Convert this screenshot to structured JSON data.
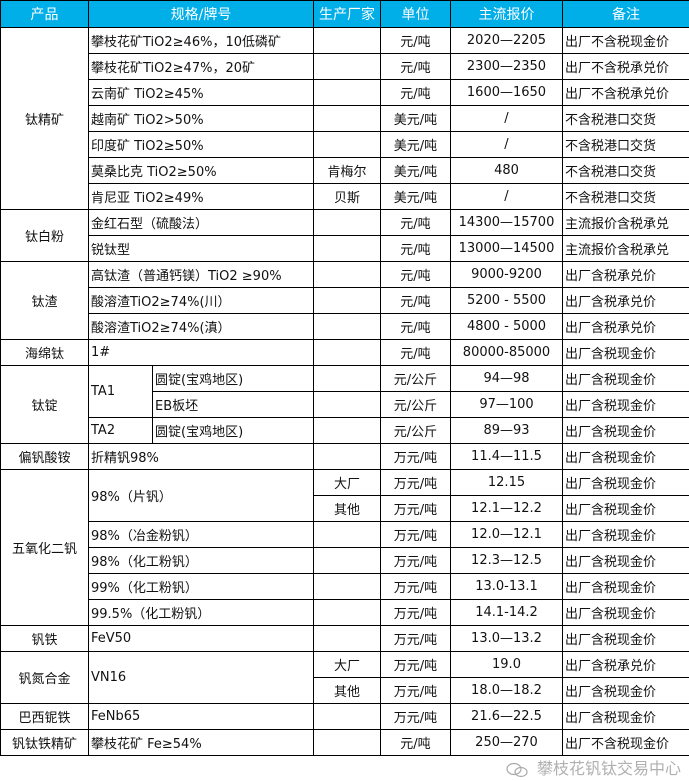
{
  "header": [
    "产品",
    "规格/牌号",
    "生产厂家",
    "单位",
    "主流报价",
    "备注"
  ],
  "colors": {
    "header_bg": "#00aee8",
    "header_text": "#ffffff",
    "border": "#000000"
  },
  "groups": [
    {
      "product": "钛精矿",
      "items": [
        {
          "spec": "攀枝花矿TiO2≥46%，10低磷矿",
          "variants": [
            {
              "maker": "",
              "unit": "元/吨",
              "price": "2020—2205",
              "note": "出厂不含税现金价"
            }
          ]
        },
        {
          "spec": "攀枝花矿TiO2≥47%，20矿",
          "variants": [
            {
              "maker": "",
              "unit": "元/吨",
              "price": "2300—2350",
              "note": "出厂不含税承兑价"
            }
          ]
        },
        {
          "spec": "云南矿 TiO2≥45%",
          "variants": [
            {
              "maker": "",
              "unit": "元/吨",
              "price": "1600—1650",
              "note": "出厂不含税承兑价"
            }
          ]
        },
        {
          "spec": "越南矿 TiO2>50%",
          "variants": [
            {
              "maker": "",
              "unit": "美元/吨",
              "price": "/",
              "note": "不含税港口交货"
            }
          ]
        },
        {
          "spec": "印度矿 TiO2≥50%",
          "variants": [
            {
              "maker": "",
              "unit": "美元/吨",
              "price": "/",
              "note": "不含税港口交货"
            }
          ]
        },
        {
          "spec": "莫桑比克 TiO2≥50%",
          "variants": [
            {
              "maker": "肯梅尔",
              "unit": "美元/吨",
              "price": "480",
              "note": "不含税港口交货"
            }
          ]
        },
        {
          "spec": "肯尼亚 TiO2≥49%",
          "variants": [
            {
              "maker": "贝斯",
              "unit": "美元/吨",
              "price": "/",
              "note": "不含税港口交货"
            }
          ]
        }
      ]
    },
    {
      "product": "钛白粉",
      "items": [
        {
          "spec": "金红石型（硫酸法）",
          "variants": [
            {
              "maker": "",
              "unit": "元/吨",
              "price": "14300—15700",
              "note": "主流报价含税承兑"
            }
          ]
        },
        {
          "spec": "锐钛型",
          "variants": [
            {
              "maker": "",
              "unit": "元/吨",
              "price": "13000—14500",
              "note": "主流报价含税承兑"
            }
          ]
        }
      ]
    },
    {
      "product": "钛渣",
      "items": [
        {
          "spec": "高钛渣（普通钙镁）TiO2 ≥90%",
          "small": true,
          "variants": [
            {
              "maker": "",
              "unit": "元/吨",
              "price": "9000-9200",
              "note": "出厂含税承兑价"
            }
          ]
        },
        {
          "spec": "酸溶渣TiO2≥74%(川）",
          "variants": [
            {
              "maker": "",
              "unit": "元/吨",
              "price": "5200 - 5500",
              "note": "出厂含税承兑价"
            }
          ]
        },
        {
          "spec": "酸溶渣TiO2≥74%(滇）",
          "variants": [
            {
              "maker": "",
              "unit": "元/吨",
              "price": "4800 - 5000",
              "note": "出厂含税承兑价"
            }
          ]
        }
      ]
    },
    {
      "product": "海绵钛",
      "items": [
        {
          "spec": "1#",
          "variants": [
            {
              "maker": "",
              "unit": "元/吨",
              "price": "80000-85000",
              "note": "出厂含税现金价"
            }
          ]
        }
      ]
    },
    {
      "product": "钛锭",
      "hasSub": true,
      "items": [
        {
          "spec": "TA1",
          "variants": [
            {
              "sub": "圆锭(宝鸡地区)",
              "maker": "",
              "unit": "元/公斤",
              "price": "94—98",
              "note": "出厂含税现金价"
            },
            {
              "sub": "EB板坯",
              "maker": "",
              "unit": "元/公斤",
              "price": "97—100",
              "note": "出厂含税现金价"
            }
          ]
        },
        {
          "spec": "TA2",
          "variants": [
            {
              "sub": "圆锭(宝鸡地区)",
              "maker": "",
              "unit": "元/公斤",
              "price": "89—93",
              "note": "出厂含税现金价"
            }
          ]
        }
      ]
    },
    {
      "product": "偏钒酸铵",
      "items": [
        {
          "spec": "折精钒98%",
          "variants": [
            {
              "maker": "",
              "unit": "万元/吨",
              "price": "11.4—11.5",
              "note": "出厂含税现金价"
            }
          ]
        }
      ]
    },
    {
      "product": "五氧化二钒",
      "items": [
        {
          "spec": "98%（片钒）",
          "variants": [
            {
              "maker": "大厂",
              "unit": "万元/吨",
              "price": "12.15",
              "note": "出厂含税现金价"
            },
            {
              "maker": "其他",
              "unit": "万元/吨",
              "price": "12.1—12.2",
              "note": "出厂含税现金价"
            }
          ]
        },
        {
          "spec": "98%（冶金粉钒）",
          "variants": [
            {
              "maker": "",
              "unit": "万元/吨",
              "price": "12.0—12.1",
              "note": "出厂含税现金价"
            }
          ]
        },
        {
          "spec": "98%（化工粉钒）",
          "variants": [
            {
              "maker": "",
              "unit": "万元/吨",
              "price": "12.3—12.5",
              "note": "出厂含税现金价"
            }
          ]
        },
        {
          "spec": "99%（化工粉钒）",
          "variants": [
            {
              "maker": "",
              "unit": "万元/吨",
              "price": "13.0-13.1",
              "note": "出厂含税现金价"
            }
          ]
        },
        {
          "spec": "99.5%（化工粉钒）",
          "variants": [
            {
              "maker": "",
              "unit": "万元/吨",
              "price": "14.1-14.2",
              "note": "出厂含税现金价"
            }
          ]
        }
      ]
    },
    {
      "product": "钒铁",
      "items": [
        {
          "spec": "FeV50",
          "variants": [
            {
              "maker": "",
              "unit": "万元/吨",
              "price": "13.0—13.2",
              "note": "出厂含税现金价"
            }
          ]
        }
      ]
    },
    {
      "product": "钒氮合金",
      "items": [
        {
          "spec": "VN16",
          "variants": [
            {
              "maker": "大厂",
              "unit": "万元/吨",
              "price": "19.0",
              "note": "出厂含税承兑价"
            },
            {
              "maker": "其他",
              "unit": "万元/吨",
              "price": "18.0—18.2",
              "note": "出厂含税现金价"
            }
          ]
        }
      ]
    },
    {
      "product": "巴西铌铁",
      "items": [
        {
          "spec": "FeNb65",
          "variants": [
            {
              "maker": "",
              "unit": "万元/吨",
              "price": "21.6—22.5",
              "note": "出厂含税现金价"
            }
          ]
        }
      ]
    },
    {
      "product": "钒钛铁精矿",
      "items": [
        {
          "spec": "攀枝花矿 Fe≥54%",
          "variants": [
            {
              "maker": "",
              "unit": "元/吨",
              "price": "250—270",
              "note": "出厂不含税现金价"
            }
          ]
        }
      ]
    }
  ],
  "watermark": {
    "text": "攀枝花钒钛交易中心",
    "icon": "wechat-icon"
  }
}
